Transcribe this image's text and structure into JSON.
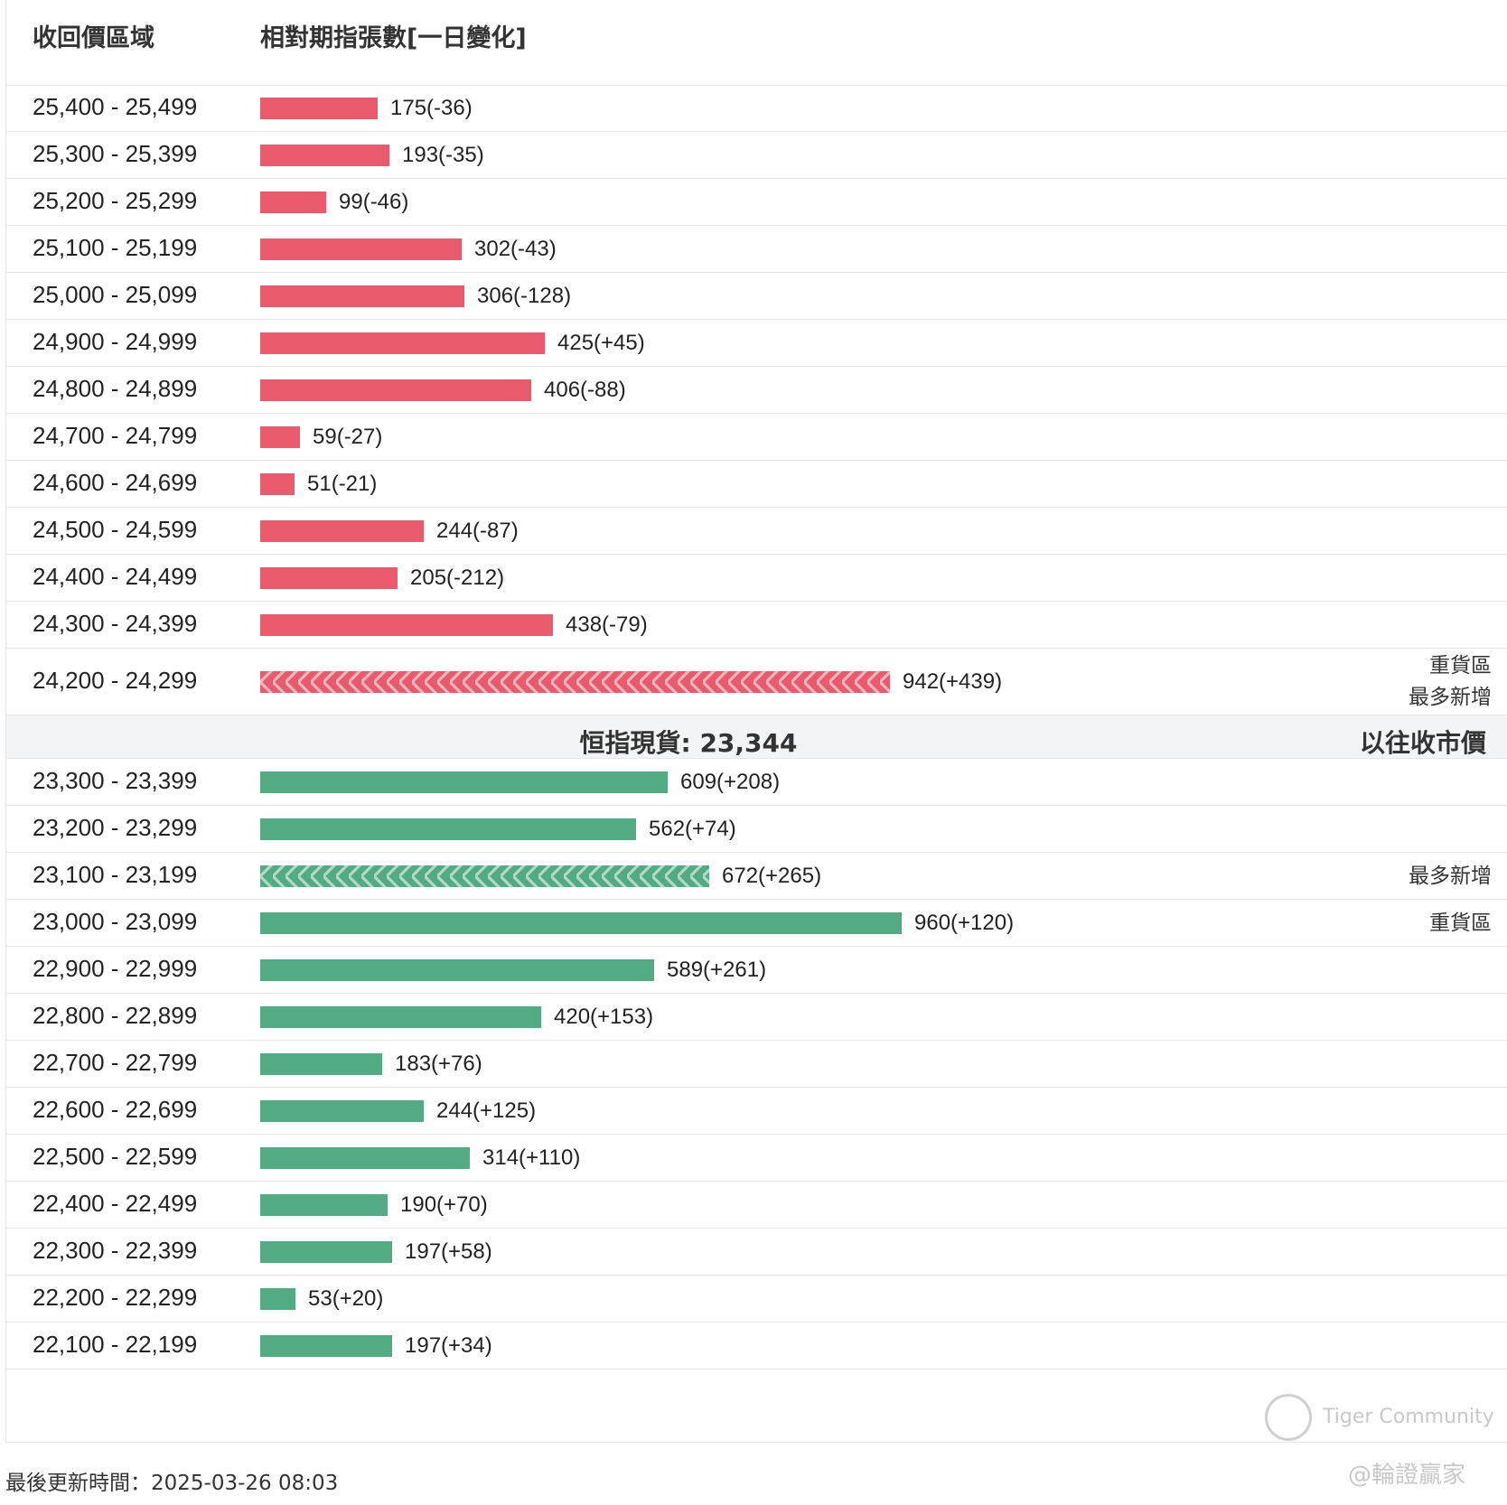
{
  "header": {
    "range_label": "收回價區域",
    "oi_label": "相對期指張數[一日變化]"
  },
  "spot": {
    "label": "恒指現貨: 23,344",
    "right_label": "以往收市價"
  },
  "footer": {
    "updated": "最後更新時間：2025-03-26 08:03"
  },
  "watermark": {
    "community": "Tiger Community",
    "handle": "@輪證贏家"
  },
  "colors": {
    "bear": "#e85a6c",
    "bull": "#52ab82"
  },
  "chart_data": {
    "type": "bar",
    "orientation": "horizontal",
    "bear_rows": [
      {
        "range": "25,400 - 25,499",
        "value": 175,
        "change": -36,
        "label": "175(-36)"
      },
      {
        "range": "25,300 - 25,399",
        "value": 193,
        "change": -35,
        "label": "193(-35)"
      },
      {
        "range": "25,200 - 25,299",
        "value": 99,
        "change": -46,
        "label": "99(-46)"
      },
      {
        "range": "25,100 - 25,199",
        "value": 302,
        "change": -43,
        "label": "302(-43)"
      },
      {
        "range": "25,000 - 25,099",
        "value": 306,
        "change": -128,
        "label": "306(-128)"
      },
      {
        "range": "24,900 - 24,999",
        "value": 425,
        "change": 45,
        "label": "425(+45)"
      },
      {
        "range": "24,800 - 24,899",
        "value": 406,
        "change": -88,
        "label": "406(-88)"
      },
      {
        "range": "24,700 - 24,799",
        "value": 59,
        "change": -27,
        "label": "59(-27)"
      },
      {
        "range": "24,600 - 24,699",
        "value": 51,
        "change": -21,
        "label": "51(-21)"
      },
      {
        "range": "24,500 - 24,599",
        "value": 244,
        "change": -87,
        "label": "244(-87)"
      },
      {
        "range": "24,400 - 24,499",
        "value": 205,
        "change": -212,
        "label": "205(-212)"
      },
      {
        "range": "24,300 - 24,399",
        "value": 438,
        "change": -79,
        "label": "438(-79)"
      },
      {
        "range": "24,200 - 24,299",
        "value": 942,
        "change": 439,
        "label": "942(+439)",
        "striped": true,
        "tags": [
          "重貨區",
          "最多新增"
        ]
      }
    ],
    "bull_rows": [
      {
        "range": "23,300 - 23,399",
        "value": 609,
        "change": 208,
        "label": "609(+208)"
      },
      {
        "range": "23,200 - 23,299",
        "value": 562,
        "change": 74,
        "label": "562(+74)"
      },
      {
        "range": "23,100 - 23,199",
        "value": 672,
        "change": 265,
        "label": "672(+265)",
        "striped": true,
        "tags": [
          "最多新增"
        ]
      },
      {
        "range": "23,000 - 23,099",
        "value": 960,
        "change": 120,
        "label": "960(+120)",
        "tags": [
          "重貨區"
        ]
      },
      {
        "range": "22,900 - 22,999",
        "value": 589,
        "change": 261,
        "label": "589(+261)"
      },
      {
        "range": "22,800 - 22,899",
        "value": 420,
        "change": 153,
        "label": "420(+153)"
      },
      {
        "range": "22,700 - 22,799",
        "value": 183,
        "change": 76,
        "label": "183(+76)"
      },
      {
        "range": "22,600 - 22,699",
        "value": 244,
        "change": 125,
        "label": "244(+125)"
      },
      {
        "range": "22,500 - 22,599",
        "value": 314,
        "change": 110,
        "label": "314(+110)"
      },
      {
        "range": "22,400 - 22,499",
        "value": 190,
        "change": 70,
        "label": "190(+70)"
      },
      {
        "range": "22,300 - 22,399",
        "value": 197,
        "change": 58,
        "label": "197(+58)"
      },
      {
        "range": "22,200 - 22,299",
        "value": 53,
        "change": 20,
        "label": "53(+20)"
      },
      {
        "range": "22,100 - 22,199",
        "value": 197,
        "change": 34,
        "label": "197(+34)"
      }
    ]
  }
}
